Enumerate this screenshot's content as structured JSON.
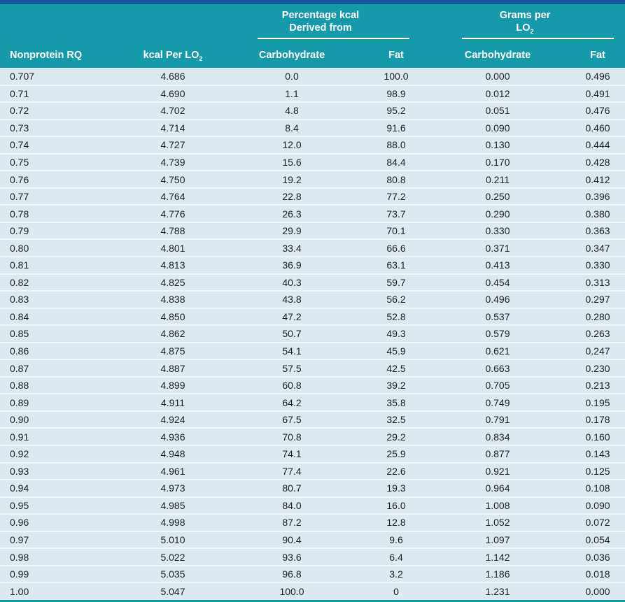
{
  "colors": {
    "top_strip": "#15559b",
    "header_teal": "#149aaa",
    "row_background": "#dce9f1",
    "row_divider": "#f1f7fa",
    "header_text": "#ffffff",
    "body_text": "#1e1e1e"
  },
  "table": {
    "group_headers": [
      {
        "line1": "Percentage kcal",
        "line2": "Derived from",
        "sub": ""
      },
      {
        "line1": "Grams per",
        "line2": "LO",
        "sub": "2"
      }
    ],
    "columns": [
      {
        "label": "Nonprotein RQ",
        "sub": ""
      },
      {
        "label": "kcal Per LO",
        "sub": "2"
      },
      {
        "label": "Carbohydrate",
        "sub": ""
      },
      {
        "label": "Fat",
        "sub": ""
      },
      {
        "label": "Carbohydrate",
        "sub": ""
      },
      {
        "label": "Fat",
        "sub": ""
      }
    ],
    "rows": [
      [
        "0.707",
        "4.686",
        "0.0",
        "100.0",
        "0.000",
        "0.496"
      ],
      [
        "0.71",
        "4.690",
        "1.1",
        "98.9",
        "0.012",
        "0.491"
      ],
      [
        "0.72",
        "4.702",
        "4.8",
        "95.2",
        "0.051",
        "0.476"
      ],
      [
        "0.73",
        "4.714",
        "8.4",
        "91.6",
        "0.090",
        "0.460"
      ],
      [
        "0.74",
        "4.727",
        "12.0",
        "88.0",
        "0.130",
        "0.444"
      ],
      [
        "0.75",
        "4.739",
        "15.6",
        "84.4",
        "0.170",
        "0.428"
      ],
      [
        "0.76",
        "4.750",
        "19.2",
        "80.8",
        "0.211",
        "0.412"
      ],
      [
        "0.77",
        "4.764",
        "22.8",
        "77.2",
        "0.250",
        "0.396"
      ],
      [
        "0.78",
        "4.776",
        "26.3",
        "73.7",
        "0.290",
        "0.380"
      ],
      [
        "0.79",
        "4.788",
        "29.9",
        "70.1",
        "0.330",
        "0.363"
      ],
      [
        "0.80",
        "4.801",
        "33.4",
        "66.6",
        "0.371",
        "0.347"
      ],
      [
        "0.81",
        "4.813",
        "36.9",
        "63.1",
        "0.413",
        "0.330"
      ],
      [
        "0.82",
        "4.825",
        "40.3",
        "59.7",
        "0.454",
        "0.313"
      ],
      [
        "0.83",
        "4.838",
        "43.8",
        "56.2",
        "0.496",
        "0.297"
      ],
      [
        "0.84",
        "4.850",
        "47.2",
        "52.8",
        "0.537",
        "0.280"
      ],
      [
        "0.85",
        "4.862",
        "50.7",
        "49.3",
        "0.579",
        "0.263"
      ],
      [
        "0.86",
        "4.875",
        "54.1",
        "45.9",
        "0.621",
        "0.247"
      ],
      [
        "0.87",
        "4.887",
        "57.5",
        "42.5",
        "0.663",
        "0.230"
      ],
      [
        "0.88",
        "4.899",
        "60.8",
        "39.2",
        "0.705",
        "0.213"
      ],
      [
        "0.89",
        "4.911",
        "64.2",
        "35.8",
        "0.749",
        "0.195"
      ],
      [
        "0.90",
        "4.924",
        "67.5",
        "32.5",
        "0.791",
        "0.178"
      ],
      [
        "0.91",
        "4.936",
        "70.8",
        "29.2",
        "0.834",
        "0.160"
      ],
      [
        "0.92",
        "4.948",
        "74.1",
        "25.9",
        "0.877",
        "0.143"
      ],
      [
        "0.93",
        "4.961",
        "77.4",
        "22.6",
        "0.921",
        "0.125"
      ],
      [
        "0.94",
        "4.973",
        "80.7",
        "19.3",
        "0.964",
        "0.108"
      ],
      [
        "0.95",
        "4.985",
        "84.0",
        "16.0",
        "1.008",
        "0.090"
      ],
      [
        "0.96",
        "4.998",
        "87.2",
        "12.8",
        "1.052",
        "0.072"
      ],
      [
        "0.97",
        "5.010",
        "90.4",
        "9.6",
        "1.097",
        "0.054"
      ],
      [
        "0.98",
        "5.022",
        "93.6",
        "6.4",
        "1.142",
        "0.036"
      ],
      [
        "0.99",
        "5.035",
        "96.8",
        "3.2",
        "1.186",
        "0.018"
      ],
      [
        "1.00",
        "5.047",
        "100.0",
        "0",
        "1.231",
        "0.000"
      ]
    ]
  }
}
